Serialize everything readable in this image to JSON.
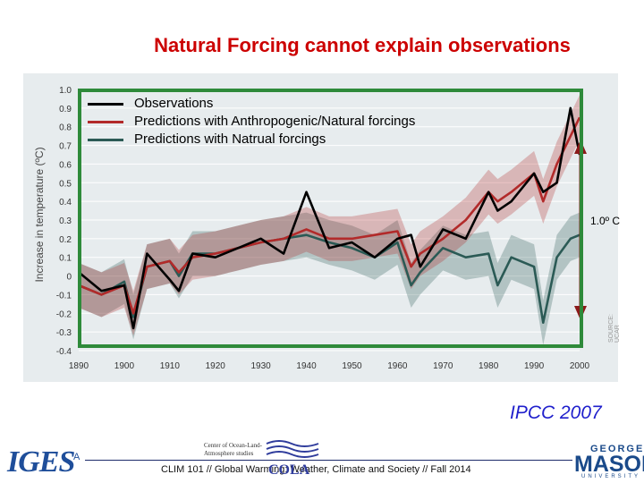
{
  "slide": {
    "title": "Natural Forcing cannot explain observations",
    "credit": "IPCC 2007",
    "footer": "CLIM 101 // Global Warming: Weather, Climate and Society // Fall 2014",
    "logo_iges": "IGES",
    "logo_iges_sub": "A",
    "cola_center_line1": "Center of Ocean-Land-",
    "cola_center_line2": "Atmosphere studies",
    "cola_word": "COLA",
    "mason_george": "GEORGE",
    "mason_word": "MASON",
    "mason_univ": "UNIVERSITY"
  },
  "chart_data": {
    "type": "line",
    "title": "",
    "xlabel": "",
    "ylabel": "Increase in temperature (ºC)",
    "xlim": [
      1890,
      2000
    ],
    "ylim": [
      -0.4,
      1.0
    ],
    "x_ticks": [
      "1890",
      "1900",
      "1910",
      "1920",
      "1930",
      "1940",
      "1950",
      "1960",
      "1970",
      "1980",
      "1990",
      "2000"
    ],
    "y_ticks": [
      "1.0",
      "0.9",
      "0.8",
      "0.7",
      "0.6",
      "0.5",
      "0.4",
      "0.3",
      "0.2",
      "0.1",
      "0",
      "-0.1",
      "-0.2",
      "-0.3",
      "-0.4"
    ],
    "legend": [
      {
        "label": "Observations",
        "color": "#000000"
      },
      {
        "label": "Predictions with Anthropogenic/Natural forcings",
        "color": "#b22a2a"
      },
      {
        "label": "Predictions with Natrual forcings",
        "color": "#2b5a55"
      }
    ],
    "legend_position": "top-left",
    "annotation": "1.0º C",
    "source_note": "SOURCE: UCAR",
    "x": [
      1890,
      1895,
      1900,
      1902,
      1905,
      1910,
      1912,
      1915,
      1920,
      1925,
      1930,
      1935,
      1940,
      1945,
      1950,
      1955,
      1960,
      1963,
      1965,
      1970,
      1975,
      1980,
      1982,
      1985,
      1990,
      1992,
      1995,
      1998,
      2000
    ],
    "series": [
      {
        "name": "Observations",
        "color": "#000000",
        "values": [
          0.02,
          -0.08,
          -0.05,
          -0.28,
          0.12,
          -0.02,
          -0.08,
          0.12,
          0.1,
          0.15,
          0.2,
          0.12,
          0.45,
          0.15,
          0.18,
          0.1,
          0.2,
          0.22,
          0.05,
          0.25,
          0.2,
          0.45,
          0.35,
          0.4,
          0.55,
          0.45,
          0.5,
          0.9,
          0.65
        ]
      },
      {
        "name": "Predictions with Anthropogenic/Natural forcings",
        "color": "#b22a2a",
        "band_width": 0.12,
        "values": [
          -0.05,
          -0.1,
          -0.05,
          -0.2,
          0.05,
          0.08,
          0.02,
          0.1,
          0.12,
          0.15,
          0.18,
          0.2,
          0.25,
          0.2,
          0.2,
          0.22,
          0.24,
          0.05,
          0.12,
          0.2,
          0.3,
          0.45,
          0.4,
          0.45,
          0.55,
          0.4,
          0.6,
          0.75,
          0.85
        ]
      },
      {
        "name": "Predictions with Natrual forcings",
        "color": "#2b5a55",
        "band_width": 0.12,
        "values": [
          -0.05,
          -0.1,
          -0.03,
          -0.22,
          0.05,
          0.08,
          0.0,
          0.12,
          0.12,
          0.15,
          0.18,
          0.2,
          0.22,
          0.18,
          0.15,
          0.1,
          0.18,
          -0.05,
          0.02,
          0.15,
          0.1,
          0.12,
          -0.05,
          0.1,
          0.05,
          -0.25,
          0.1,
          0.2,
          0.22
        ]
      }
    ]
  }
}
